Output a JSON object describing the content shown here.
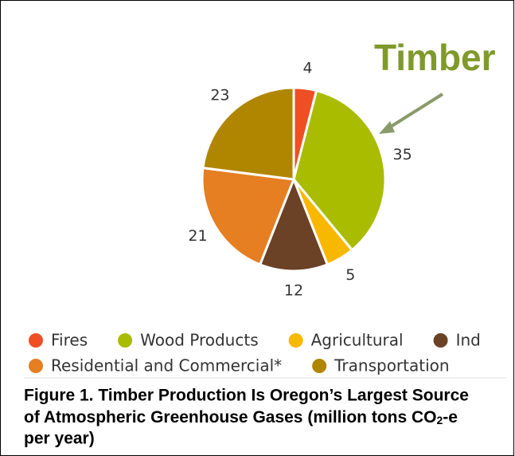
{
  "chart_data": {
    "type": "pie",
    "annotation": "Timber",
    "categories": [
      "Fires",
      "Wood Products",
      "Agricultural",
      "Ind",
      "Residential and Commercial*",
      "Transportation"
    ],
    "values": [
      4,
      35,
      5,
      12,
      21,
      23
    ],
    "colors": [
      "#f04e23",
      "#a9bc00",
      "#f8b800",
      "#6b4226",
      "#e67e22",
      "#b08600"
    ],
    "caption": {
      "line1": "Figure 1. Timber Production Is Oregon’s Largest Source",
      "line2_start": "of Atmospheric Greenhouse Gases (million tons CO",
      "subscript": "2",
      "line2_end": "-e",
      "line3": "per year)"
    }
  }
}
